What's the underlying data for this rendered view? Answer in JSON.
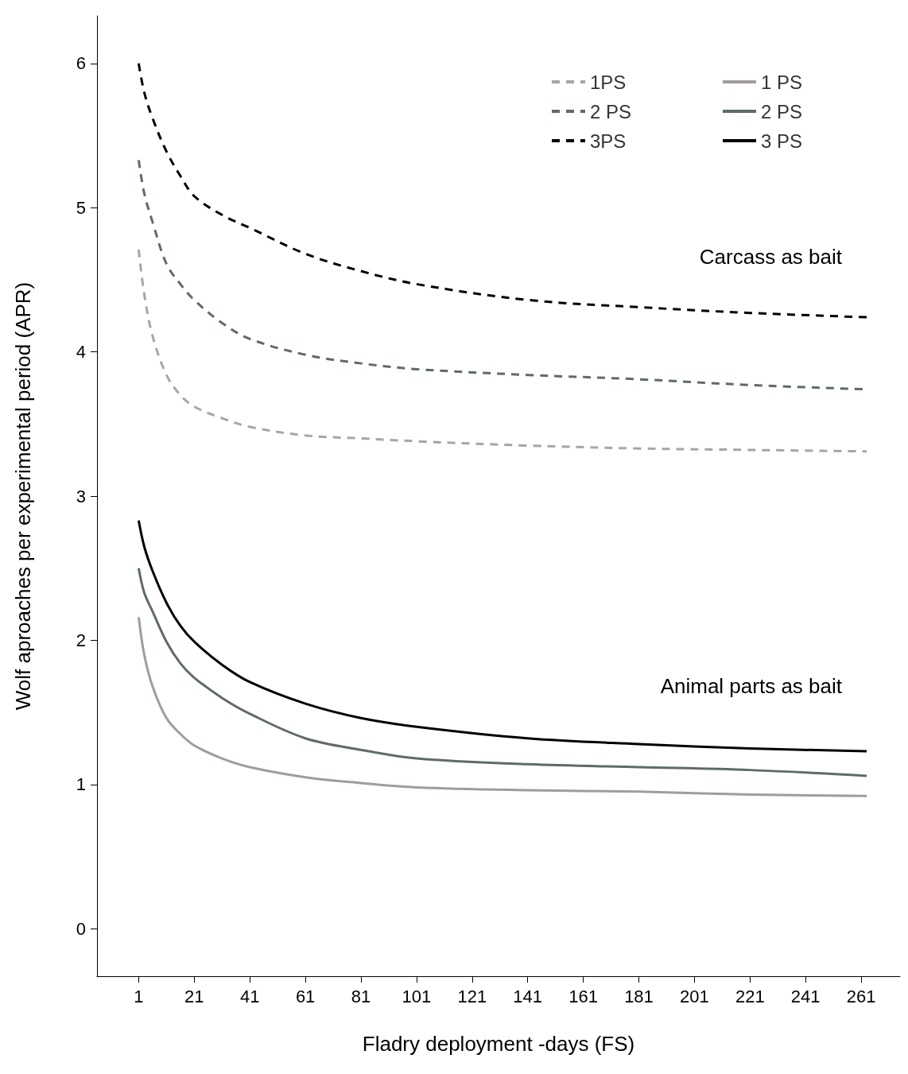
{
  "chart_data": {
    "type": "line",
    "xlabel": "Fladry deployment -days (FS)",
    "ylabel": "Wolf aproaches per experimental period (APR)",
    "x": [
      1,
      3,
      6,
      11,
      16,
      21,
      31,
      41,
      61,
      81,
      101,
      141,
      181,
      221,
      263
    ],
    "xlim": [
      -14,
      275
    ],
    "ylim": [
      -0.33,
      6.33
    ],
    "xticks": [
      1,
      21,
      41,
      61,
      81,
      101,
      121,
      141,
      161,
      181,
      201,
      221,
      241,
      261
    ],
    "yticks": [
      0,
      1,
      2,
      3,
      4,
      5,
      6
    ],
    "grid": false,
    "legend": "top right",
    "marker": "none",
    "series": [
      {
        "name": "1PS",
        "color": "#a6a6a6",
        "line_style": "dashed",
        "values": [
          4.71,
          4.4,
          4.11,
          3.84,
          3.7,
          3.62,
          3.54,
          3.48,
          3.42,
          3.4,
          3.38,
          3.35,
          3.33,
          3.32,
          3.31
        ]
      },
      {
        "name": "2 PS",
        "color": "#5f6a6a",
        "line_style": "dashed",
        "values": [
          5.33,
          5.1,
          4.9,
          4.61,
          4.47,
          4.36,
          4.2,
          4.09,
          3.98,
          3.92,
          3.88,
          3.84,
          3.81,
          3.77,
          3.74
        ]
      },
      {
        "name": "3PS",
        "color": "#000000",
        "line_style": "dashed",
        "values": [
          6.0,
          5.8,
          5.62,
          5.39,
          5.22,
          5.08,
          4.95,
          4.86,
          4.68,
          4.56,
          4.47,
          4.36,
          4.31,
          4.27,
          4.24
        ]
      },
      {
        "name": "1 PS",
        "color": "#a19b9f",
        "line_style": "solid",
        "values": [
          2.16,
          1.9,
          1.68,
          1.46,
          1.35,
          1.27,
          1.18,
          1.12,
          1.05,
          1.01,
          0.98,
          0.96,
          0.95,
          0.93,
          0.92
        ]
      },
      {
        "name": "2 PS",
        "color": "#5f6a6a",
        "line_style": "solid",
        "values": [
          2.5,
          2.33,
          2.2,
          1.99,
          1.84,
          1.74,
          1.6,
          1.49,
          1.32,
          1.24,
          1.18,
          1.14,
          1.12,
          1.1,
          1.06
        ]
      },
      {
        "name": "3 PS",
        "color": "#000000",
        "line_style": "solid",
        "values": [
          2.83,
          2.65,
          2.48,
          2.26,
          2.1,
          1.99,
          1.83,
          1.71,
          1.56,
          1.46,
          1.4,
          1.32,
          1.28,
          1.25,
          1.23
        ]
      }
    ],
    "annotations": [
      "Carcass as bait",
      "Animal parts as bait"
    ]
  }
}
